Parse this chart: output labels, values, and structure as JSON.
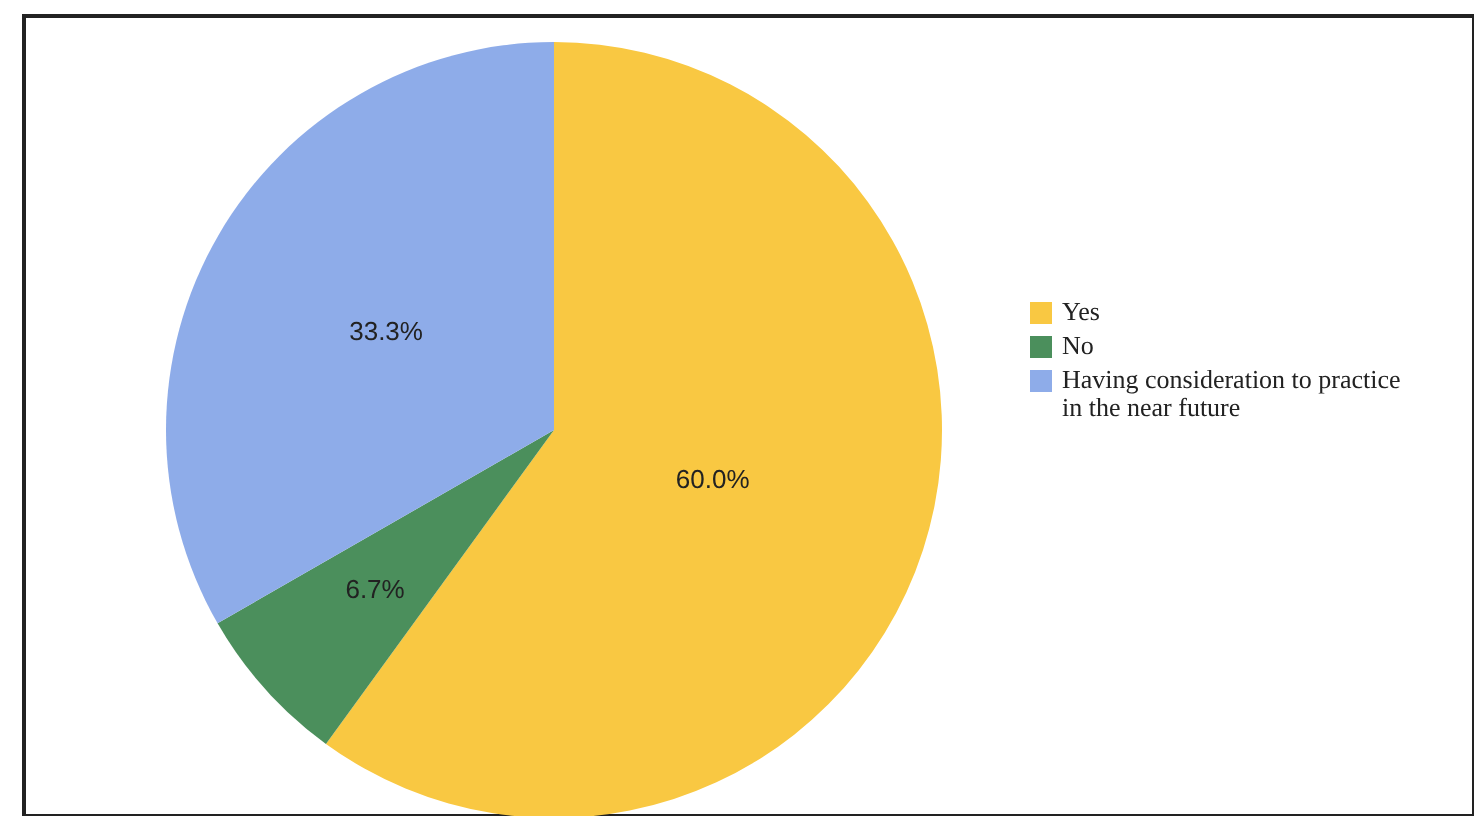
{
  "chart_data": {
    "type": "pie",
    "categories": [
      "Yes",
      "No",
      "Having consideration to practice in the near future"
    ],
    "values": [
      60.0,
      6.7,
      33.3
    ],
    "colors": [
      "#f9c842",
      "#4b8f5c",
      "#8eace9"
    ],
    "value_labels": [
      "60.0%",
      "6.7%",
      "33.3%"
    ],
    "legend": "right"
  }
}
